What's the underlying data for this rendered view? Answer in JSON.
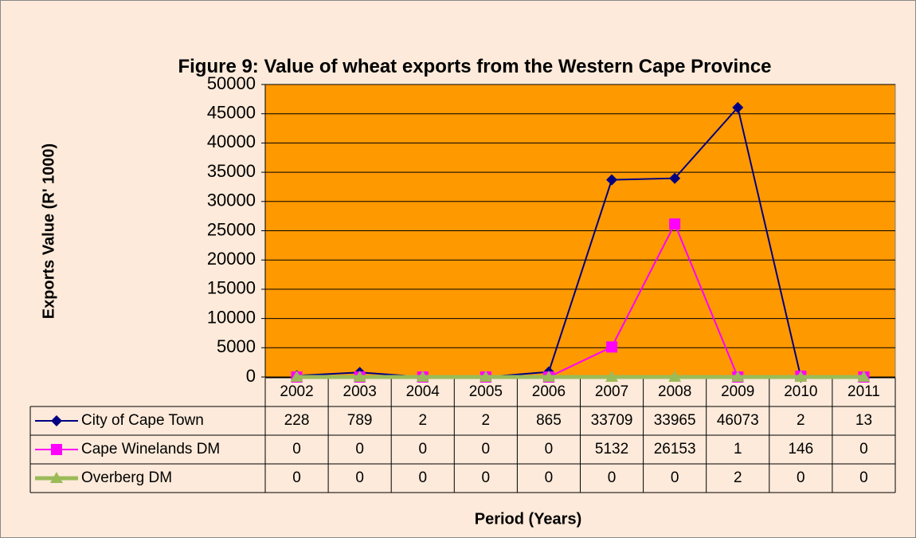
{
  "chart_data": {
    "type": "line",
    "title": "Figure 9: Value of wheat exports from the Western Cape Province",
    "y_label": "Exports Value (R' 1000)",
    "x_label": "Period (Years)",
    "categories": [
      "2002",
      "2003",
      "2004",
      "2005",
      "2006",
      "2007",
      "2008",
      "2009",
      "2010",
      "2011"
    ],
    "series": [
      {
        "name": "City of Cape Town",
        "color": "#000080",
        "marker": "diamond",
        "values": [
          228,
          789,
          2,
          2,
          865,
          33709,
          33965,
          46073,
          2,
          13
        ]
      },
      {
        "name": "Cape Winelands DM",
        "color": "#ff00ff",
        "marker": "square",
        "values": [
          0,
          0,
          0,
          0,
          0,
          5132,
          26153,
          1,
          146,
          0
        ]
      },
      {
        "name": "Overberg DM",
        "color": "#9bbb59",
        "marker": "triangle",
        "values": [
          0,
          0,
          0,
          0,
          0,
          0,
          0,
          2,
          0,
          0
        ]
      }
    ],
    "ylim": [
      0,
      50000
    ],
    "yticks": [
      0,
      5000,
      10000,
      15000,
      20000,
      25000,
      30000,
      35000,
      40000,
      45000,
      50000
    ],
    "grid": true,
    "plot_color": "#ff9900"
  }
}
